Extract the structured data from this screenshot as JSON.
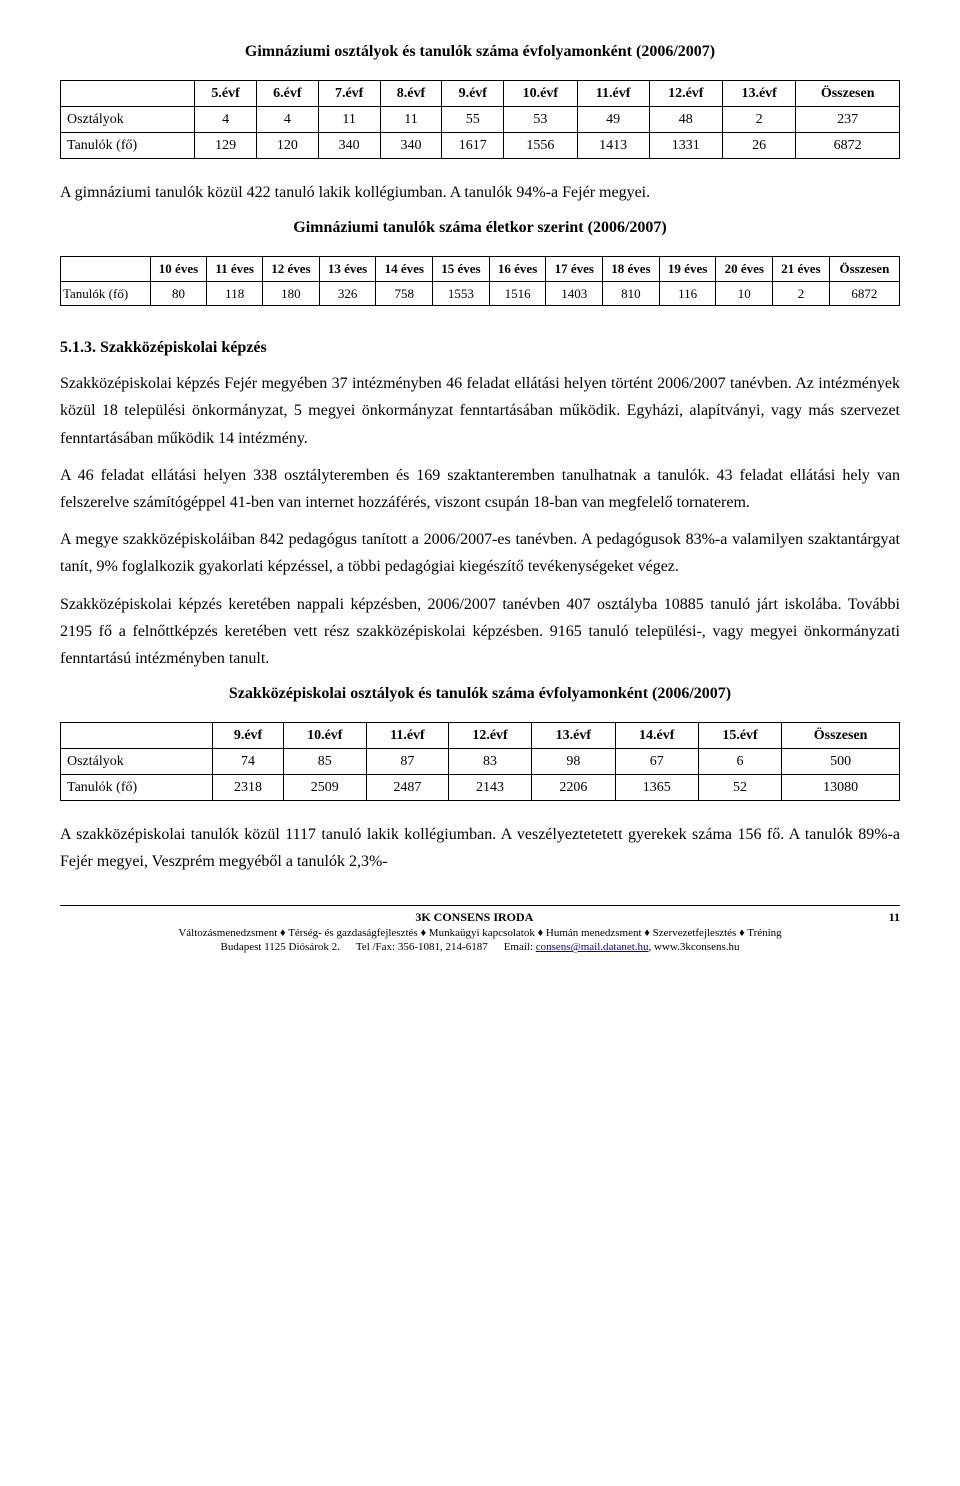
{
  "title1": "Gimnáziumi osztályok és tanulók száma évfolyamonként (2006/2007)",
  "table1": {
    "headers": [
      "",
      "5.évf",
      "6.évf",
      "7.évf",
      "8.évf",
      "9.évf",
      "10.évf",
      "11.évf",
      "12.évf",
      "13.évf",
      "Összesen"
    ],
    "rows": [
      [
        "Osztályok",
        "4",
        "4",
        "11",
        "11",
        "55",
        "53",
        "49",
        "48",
        "2",
        "237"
      ],
      [
        "Tanulók (fő)",
        "129",
        "120",
        "340",
        "340",
        "1617",
        "1556",
        "1413",
        "1331",
        "26",
        "6872"
      ]
    ]
  },
  "para1": "A gimnáziumi tanulók közül 422 tanuló lakik kollégiumban. A tanulók 94%-a Fejér megyei.",
  "title2": "Gimnáziumi tanulók száma életkor szerint (2006/2007)",
  "table2": {
    "headers": [
      "",
      "10 éves",
      "11 éves",
      "12 éves",
      "13 éves",
      "14 éves",
      "15 éves",
      "16 éves",
      "17 éves",
      "18 éves",
      "19 éves",
      "20 éves",
      "21 éves",
      "Összesen"
    ],
    "rows": [
      [
        "Tanulók (fő)",
        "80",
        "118",
        "180",
        "326",
        "758",
        "1553",
        "1516",
        "1403",
        "810",
        "116",
        "10",
        "2",
        "6872"
      ]
    ]
  },
  "section_heading": "5.1.3. Szakközépiskolai képzés",
  "bodytext": "Szakközépiskolai képzés Fejér megyében 37 intézményben 46 feladat ellátási helyen történt 2006/2007 tanévben. Az intézmények közül 18 települési önkormányzat, 5 megyei önkormányzat fenntartásában működik. Egyházi, alapítványi, vagy más szervezet fenntartásában működik 14 intézmény.\nA 46 feladat ellátási helyen 338 osztályteremben és 169 szaktanteremben tanulhatnak a tanulók. 43 feladat ellátási hely van felszerelve számítógéppel 41-ben van internet hozzáférés, viszont csupán 18-ban van megfelelő tornaterem.\nA megye szakközépiskoláiban 842 pedagógus tanított a 2006/2007-es tanévben. A pedagógusok 83%-a valamilyen szaktantárgyat tanít, 9% foglalkozik gyakorlati képzéssel, a többi pedagógiai kiegészítő tevékenységeket végez.\nSzakközépiskolai képzés keretében nappali képzésben, 2006/2007 tanévben 407 osztályba 10885 tanuló járt iskolába. További 2195 fő a felnőttképzés keretében vett rész szakközépiskolai képzésben. 9165 tanuló települési-, vagy megyei önkormányzati fenntartású intézményben tanult.",
  "title3": "Szakközépiskolai osztályok és tanulók száma évfolyamonként (2006/2007)",
  "table3": {
    "headers": [
      "",
      "9.évf",
      "10.évf",
      "11.évf",
      "12.évf",
      "13.évf",
      "14.évf",
      "15.évf",
      "Összesen"
    ],
    "rows": [
      [
        "Osztályok",
        "74",
        "85",
        "87",
        "83",
        "98",
        "67",
        "6",
        "500"
      ],
      [
        "Tanulók (fő)",
        "2318",
        "2509",
        "2487",
        "2143",
        "2206",
        "1365",
        "52",
        "13080"
      ]
    ]
  },
  "para2": "A szakközépiskolai tanulók közül 1117 tanuló lakik kollégiumban. A veszélyeztetetett gyerekek száma 156 fő. A tanulók 89%-a Fejér megyei, Veszprém megyéből a tanulók 2,3%-",
  "footer": {
    "org": "3K CONSENS IRODA",
    "page": "11",
    "line": "Változásmenedzsment ♦ Térség- és gazdaságfejlesztés ♦ Munkaügyi kapcsolatok ♦ Humán menedzsment ♦ Szervezetfejlesztés ♦ Tréning",
    "addr": "Budapest 1125 Diósárok 2.",
    "tel": "Tel /Fax: 356-1081, 214-6187",
    "email_label": "Email: ",
    "email": "consens@mail.datanet.hu",
    "web": ", www.3kconsens.hu"
  }
}
